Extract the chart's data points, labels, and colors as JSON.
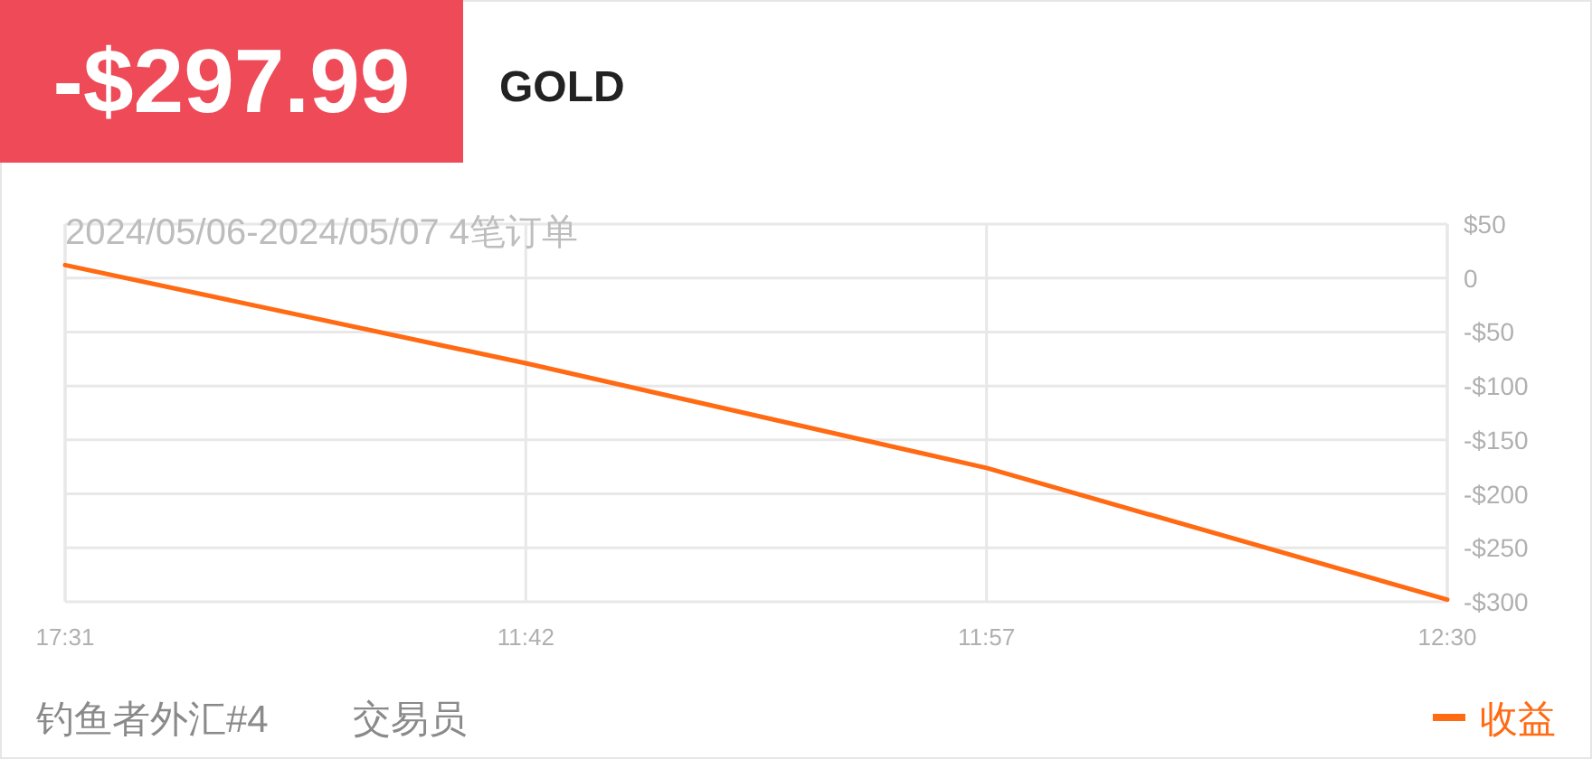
{
  "chart_data": {
    "type": "line",
    "title": "-$297.99",
    "subtitle": "GOLD",
    "annotations": [
      "2024/05/06-2024/05/07 4笔订单",
      "钓鱼者外汇#4",
      "交易员"
    ],
    "categories": [
      "17:31",
      "11:42",
      "11:57",
      "12:30"
    ],
    "series": [
      {
        "name": "收益",
        "color": "#ff6a13",
        "values": [
          12,
          -79,
          -176,
          -298
        ]
      }
    ],
    "ylim": [
      -300,
      50
    ],
    "yticks": [
      {
        "value": 50,
        "label": "$50"
      },
      0,
      {
        "value": -50,
        "label": "-$50"
      },
      {
        "value": -100,
        "label": "-$100"
      },
      {
        "value": -150,
        "label": "-$150"
      },
      {
        "value": -200,
        "label": "-$200"
      },
      {
        "value": -250,
        "label": "-$250"
      },
      {
        "value": -300,
        "label": "-$300"
      }
    ],
    "grid": true,
    "legend": "bottom right",
    "marker": "none",
    "line_style": "solid"
  }
}
